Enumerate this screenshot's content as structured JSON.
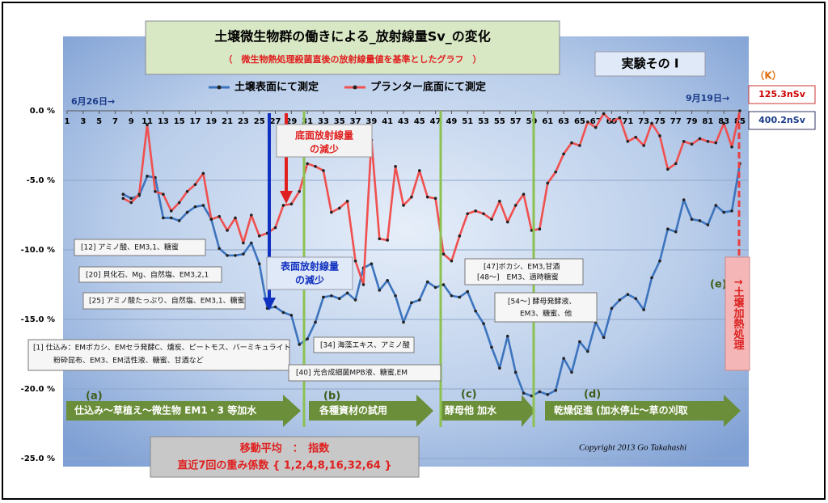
{
  "chart_data": {
    "type": "line",
    "title": "土壌微生物群の働きによる_放射線量Sv_の変化",
    "subtitle": "（　微生物熱処理殺菌直後の放射線量値を基準としたグラフ　）",
    "experiment": "実験その Ⅰ",
    "start_label": "6月26日→",
    "end_label": "9月19日→",
    "k_label": "（K）",
    "bottom_value": "125.3nSv",
    "surface_value": "400.2nSv",
    "xlim": [
      1,
      85
    ],
    "xticks": [
      1,
      3,
      5,
      7,
      9,
      11,
      13,
      15,
      17,
      19,
      21,
      23,
      25,
      27,
      29,
      31,
      33,
      35,
      37,
      39,
      41,
      43,
      45,
      47,
      49,
      51,
      53,
      55,
      57,
      59,
      61,
      63,
      65,
      67,
      69,
      71,
      73,
      75,
      77,
      79,
      81,
      83,
      85
    ],
    "ylim": [
      -25,
      0
    ],
    "yticks": [
      {
        "value": 0,
        "label": "0.0 %"
      },
      {
        "value": -5,
        "label": "-5.0 %"
      },
      {
        "value": -10,
        "label": "-10.0 %"
      },
      {
        "value": -15,
        "label": "-15.0 %"
      },
      {
        "value": -20,
        "label": "-20.0 %"
      },
      {
        "value": -25,
        "label": "-25.0 %"
      }
    ],
    "grid": true,
    "x": [
      8,
      9,
      10,
      11,
      12,
      13,
      14,
      15,
      16,
      17,
      18,
      19,
      20,
      21,
      22,
      23,
      24,
      25,
      26,
      27,
      28,
      29,
      30,
      31,
      32,
      33,
      34,
      35,
      36,
      37,
      38,
      39,
      40,
      41,
      42,
      43,
      44,
      45,
      46,
      47,
      48,
      49,
      50,
      51,
      52,
      53,
      54,
      55,
      56,
      57,
      58,
      59,
      60,
      61,
      62,
      63,
      64,
      65,
      66,
      67,
      68,
      69,
      70,
      71,
      72,
      73,
      74,
      75,
      76,
      77,
      78,
      79,
      80,
      81,
      82,
      83,
      84,
      85
    ],
    "series": [
      {
        "name": "土壌表面にて測定",
        "color": "#3d74bd",
        "values": [
          -6.0,
          -6.3,
          -6.1,
          -4.7,
          -4.8,
          -7.7,
          -7.7,
          -7.9,
          -7.3,
          -6.9,
          -6.8,
          -7.8,
          -9.9,
          -10.4,
          -10.4,
          -10.3,
          -9.5,
          -11.0,
          -14.2,
          -14.1,
          -14.5,
          -14.7,
          -16.8,
          -16.4,
          -15.2,
          -13.4,
          -13.3,
          -13.5,
          -13.1,
          -13.6,
          -11.3,
          -11.0,
          -12.9,
          -12.2,
          -13.3,
          -15.2,
          -13.8,
          -13.6,
          -12.3,
          -12.7,
          -12.5,
          -13.3,
          -13.4,
          -13.0,
          -14.4,
          -15.3,
          -17.0,
          -18.5,
          -16.2,
          -18.8,
          -20.3,
          -20.5,
          -20.2,
          -20.4,
          -20.1,
          -17.8,
          -18.8,
          -16.6,
          -17.3,
          -15.2,
          -16.3,
          -14.2,
          -13.6,
          -13.2,
          -13.5,
          -14.3,
          -12.0,
          -10.8,
          -8.5,
          -8.7,
          -6.4,
          -7.8,
          -7.9,
          -8.2,
          -6.8,
          -7.3,
          -7.2,
          -3.8
        ]
      },
      {
        "name": "プランター底面にて測定",
        "color": "#f0504f",
        "values": [
          -6.3,
          -6.6,
          -6.0,
          -1.0,
          -5.8,
          -6.0,
          -7.2,
          -6.6,
          -5.8,
          -5.3,
          -4.5,
          -7.8,
          -7.6,
          -8.6,
          -7.7,
          -9.5,
          -7.5,
          -9.0,
          -8.8,
          -8.4,
          -6.8,
          -6.7,
          -5.8,
          -3.8,
          -4.0,
          -4.3,
          -7.3,
          -7.0,
          -6.5,
          -10.8,
          -12.5,
          -2.1,
          -9.2,
          -9.3,
          -4.0,
          -6.8,
          -6.2,
          -4.3,
          -6.2,
          -6.3,
          -10.3,
          -10.8,
          -9.0,
          -7.4,
          -7.2,
          -7.4,
          -7.8,
          -6.5,
          -8.0,
          -6.8,
          -6.0,
          -8.6,
          -8.5,
          -5.2,
          -4.4,
          -3.1,
          -2.3,
          -2.5,
          -0.8,
          -1.2,
          -0.2,
          -0.8,
          -0.5,
          -2.2,
          -1.9,
          -2.5,
          -0.9,
          -1.8,
          -4.2,
          -3.8,
          -2.2,
          -2.4,
          -2.0,
          -2.2,
          -2.3,
          -0.9,
          -2.6,
          0.0
        ]
      }
    ],
    "callouts": [
      "底面放射線量",
      "の減少",
      "表面放射線量",
      "の減少"
    ],
    "notes": [
      "[12] アミノ酸、EM3,1、糖蜜",
      "[20] 貝化石、Mg、自然塩、EM3,2,1",
      "[25] アミノ酸たっぷり、自然塩、EM3,1、糖蜜",
      "[1] 仕込み：EMボカシ、EMセラ発酵C、燻炭、ピートモス、バーミキュライト",
      "粉砕昆布、EM3、EM活性液、糖蜜、甘酒など",
      "[34] 海藻エキス、アミノ酸",
      "[40] 光合成細菌MPB液、糖蜜,EM",
      "[47]ボカシ、EM3,甘酒",
      "[48～]　EM3、適時糖蜜",
      "[54～] 酵母発酵液、",
      "EM3、糖蜜、他"
    ],
    "phases": [
      {
        "letter": "(a)",
        "text": "仕込み～草植え～微生物 EM1・3 等加水"
      },
      {
        "letter": "(b)",
        "text": "各種資材の試用"
      },
      {
        "letter": "(c)",
        "text": "酵母他 加水"
      },
      {
        "letter": "(d)",
        "text": "乾燥促進 (加水停止～草の刈取"
      }
    ],
    "e_label": "(e)",
    "heat_label": "↑土壌加熱処理",
    "method": [
      "移動平均　：　指数",
      "直近7回の重み係数 { 1,2,4,8,16,32,64 }"
    ],
    "copyright": "Copyright 2013 Go Takahashi"
  }
}
